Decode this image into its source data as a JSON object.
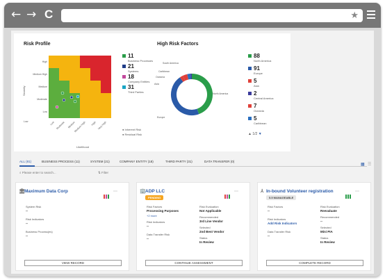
{
  "browser": {
    "back": "←",
    "forward": "→",
    "reload": "C"
  },
  "risk_profile": {
    "title": "Risk Profile",
    "y_axis": "Severity",
    "x_axis": "Likelihood",
    "rows": [
      "High",
      "Medium High",
      "Medium",
      "Moderate",
      "Low",
      "Low"
    ],
    "cols": [
      "Low",
      "Moderate",
      "Medium",
      "Medium High",
      "High",
      "Very High"
    ],
    "legend": [
      {
        "count": "11",
        "label": "Business Processes",
        "color": "#2a9d4a"
      },
      {
        "count": "21",
        "label": "Systems",
        "color": "#1f3c88"
      },
      {
        "count": "18",
        "label": "Company Entities",
        "color": "#c2489c"
      },
      {
        "count": "31",
        "label": "Third Parties",
        "color": "#19a5c4"
      }
    ],
    "legend2": [
      "Inherent Risk",
      "Residual Risk"
    ]
  },
  "high_risk": {
    "title": "High Risk Factors",
    "labels": [
      "South America",
      "Caribbean",
      "Oceania",
      "Asia",
      "Europe",
      "North America"
    ],
    "legend": [
      {
        "count": "88",
        "label": "North America",
        "color": "#2a9d4a"
      },
      {
        "count": "91",
        "label": "Europe",
        "color": "#2a5aa8"
      },
      {
        "count": "5",
        "label": "Asia",
        "color": "#e0413a"
      },
      {
        "count": "2",
        "label": "Central America",
        "color": "#3b3b9c"
      },
      {
        "count": "7",
        "label": "Oceania",
        "color": "#e0413a"
      },
      {
        "count": "5",
        "label": "Caribbean",
        "color": "#2a6fc0"
      }
    ],
    "pager": "1/2"
  },
  "tabs": [
    "ALL (81)",
    "BUSINESS PROCESS (11)",
    "SYSTEM (21)",
    "COMPANY ENTITY (18)",
    "THIRD PARTY (31)",
    "DATA TRANSFER (0)"
  ],
  "search": {
    "placeholder": "Please enter to search...",
    "filter": "Filter"
  },
  "cards": [
    {
      "title": "Maximum Data Corp",
      "fields": [
        {
          "label": "System Risk",
          "value": "--"
        },
        {
          "label": "Risk Indicators",
          "value": "--"
        },
        {
          "label": "Business Process(es)",
          "value": "--"
        }
      ],
      "button": "VIEW RECORD"
    },
    {
      "title": "ADP LLC",
      "badge": "PENDING",
      "fields": [
        {
          "label": "Risk Factors",
          "value": "Processing Purposes"
        },
        {
          "label": "+2 more",
          "value": ""
        },
        {
          "label": "Risk Indicators",
          "value": "--"
        },
        {
          "label": "Data Transfer Risk",
          "value": "--"
        }
      ],
      "right_fields": [
        {
          "label": "Risk Evaluation",
          "value": "Not Applicable"
        },
        {
          "label": "Recommended",
          "value": "3rd Line Vendor"
        },
        {
          "label": "Selected",
          "value": "2nd Best Vendor"
        },
        {
          "label": "Status",
          "value": "In Review"
        }
      ],
      "button": "CONTINUE ASSESSMENT"
    },
    {
      "title": "In-bound Volunteer registration",
      "badge": "5.5 MANAGEABLE",
      "fields": [
        {
          "label": "Risk Factors",
          "value": "--"
        },
        {
          "label": "Risk Indicators",
          "value": "Add Risk Indicators"
        },
        {
          "label": "Data Transfer Risk",
          "value": "--"
        }
      ],
      "right_fields": [
        {
          "label": "Risk Evaluation",
          "value": "Reevaluate"
        },
        {
          "label": "Recommended",
          "value": "--"
        },
        {
          "label": "Selected",
          "value": "Mini PIA"
        },
        {
          "label": "Status",
          "value": "In Review"
        }
      ],
      "button": "COMPLETE RECORD"
    }
  ]
}
